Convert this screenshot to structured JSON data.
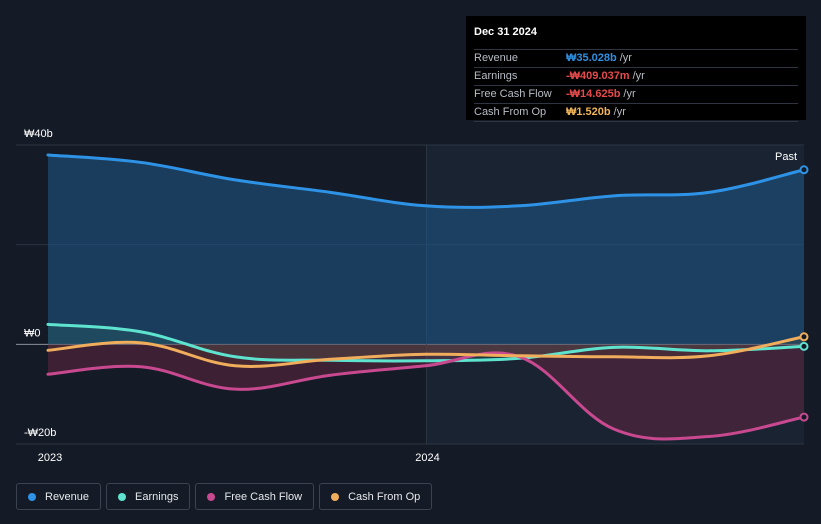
{
  "tooltip": {
    "date": "Dec 31 2024",
    "rows": [
      {
        "label": "Revenue",
        "value": "₩35.028b",
        "unit": "/yr",
        "color": "#2f8fe0"
      },
      {
        "label": "Earnings",
        "value": "-₩409.037m",
        "unit": "/yr",
        "color": "#e84a4a"
      },
      {
        "label": "Free Cash Flow",
        "value": "-₩14.625b",
        "unit": "/yr",
        "color": "#e84a4a"
      },
      {
        "label": "Cash From Op",
        "value": "₩1.520b",
        "unit": "/yr",
        "color": "#f0b45a"
      }
    ]
  },
  "past_label": "Past",
  "legend": [
    {
      "label": "Revenue",
      "color": "#2e93e6"
    },
    {
      "label": "Earnings",
      "color": "#5ee3cf"
    },
    {
      "label": "Free Cash Flow",
      "color": "#c8498f"
    },
    {
      "label": "Cash From Op",
      "color": "#f0ad5c"
    }
  ],
  "chart_data": {
    "type": "line",
    "y_unit": "₩ billions",
    "ylim": [
      -20,
      40
    ],
    "y_ticks": [
      {
        "value": 40,
        "label": "₩40b"
      },
      {
        "value": 0,
        "label": "₩0"
      },
      {
        "value": -20,
        "label": "-₩20b"
      }
    ],
    "x_range": [
      "2022-12-31",
      "2024-12-31"
    ],
    "x_ticks": [
      {
        "date": "2023-01-01",
        "label": "2023"
      },
      {
        "date": "2024-01-01",
        "label": "2024"
      }
    ],
    "past_start": "2024-01-01",
    "series": [
      {
        "name": "Revenue",
        "color": "#2e93e6",
        "x": [
          "2022-12-31",
          "2023-03-31",
          "2023-06-30",
          "2023-09-30",
          "2023-12-31",
          "2024-03-31",
          "2024-06-30",
          "2024-09-30",
          "2024-12-31"
        ],
        "y": [
          38,
          36.5,
          33,
          30.5,
          27.8,
          27.8,
          29.8,
          30.5,
          35.03
        ]
      },
      {
        "name": "Earnings",
        "color": "#5ee3cf",
        "x": [
          "2022-12-31",
          "2023-03-31",
          "2023-06-30",
          "2023-09-30",
          "2023-12-31",
          "2024-03-31",
          "2024-06-30",
          "2024-09-30",
          "2024-12-31"
        ],
        "y": [
          4,
          2.5,
          -2.5,
          -3.2,
          -3.3,
          -2.8,
          -0.6,
          -1.3,
          -0.41
        ]
      },
      {
        "name": "Free Cash Flow",
        "color": "#c8498f",
        "x": [
          "2022-12-31",
          "2023-03-31",
          "2023-06-30",
          "2023-09-30",
          "2023-12-31",
          "2024-03-31",
          "2024-06-30",
          "2024-09-30",
          "2024-12-31"
        ],
        "y": [
          -6,
          -4.5,
          -9,
          -6.2,
          -4.3,
          -2.5,
          -17,
          -18.5,
          -14.6
        ]
      },
      {
        "name": "Cash From Op",
        "color": "#f0ad5c",
        "x": [
          "2022-12-31",
          "2023-03-31",
          "2023-06-30",
          "2023-09-30",
          "2023-12-31",
          "2024-03-31",
          "2024-06-30",
          "2024-09-30",
          "2024-12-31"
        ],
        "y": [
          -1.2,
          0.3,
          -4.3,
          -3,
          -2,
          -2.3,
          -2.5,
          -2.3,
          1.52
        ]
      }
    ]
  }
}
